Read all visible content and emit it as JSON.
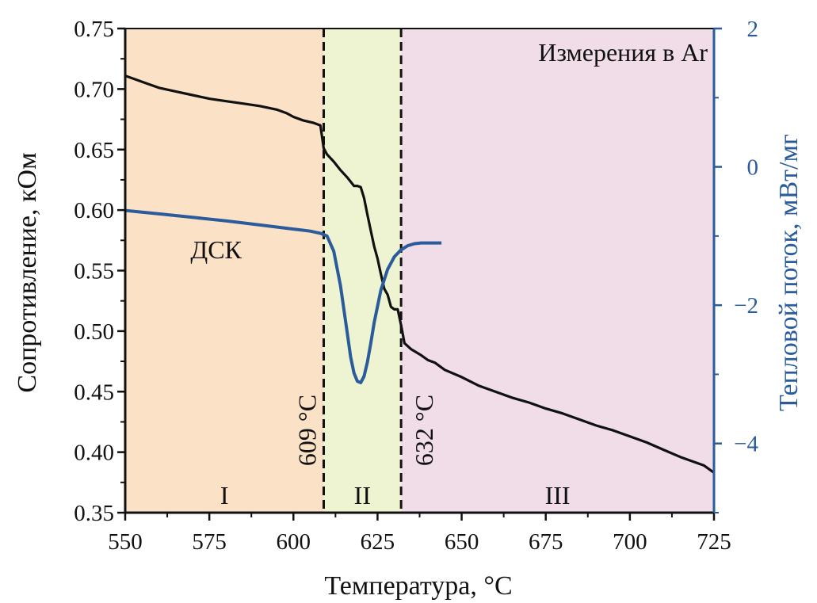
{
  "chart_data": {
    "type": "line",
    "annotation_title": "Измерения в Ar",
    "xlabel": "Температура, °C",
    "ylabel": "Сопротивление, кОм",
    "y2label": "Тепловой поток, мВт/мг",
    "xlim": [
      550,
      725
    ],
    "ylim": [
      0.35,
      0.75
    ],
    "y2lim": [
      -5,
      2
    ],
    "x_ticks": [
      "550",
      "575",
      "600",
      "625",
      "650",
      "675",
      "700",
      "725"
    ],
    "y_ticks": [
      "0.35",
      "0.40",
      "0.45",
      "0.50",
      "0.55",
      "0.60",
      "0.65",
      "0.70",
      "0.75"
    ],
    "y2_ticks": [
      "−4",
      "−2",
      "0",
      "2"
    ],
    "regions": [
      {
        "label": "I",
        "from": 550,
        "to": 609,
        "color": "#fbe2c6"
      },
      {
        "label": "II",
        "from": 609,
        "to": 632,
        "color": "#eef4d2"
      },
      {
        "label": "III",
        "from": 632,
        "to": 725,
        "color": "#f0dde8"
      }
    ],
    "vlines": [
      {
        "x": 609,
        "label": "609 °C"
      },
      {
        "x": 632,
        "label": "632 °C"
      }
    ],
    "series": [
      {
        "axis": "left",
        "color": "#111111",
        "x": [
          550,
          552,
          556,
          560,
          565,
          570,
          575,
          580,
          585,
          590,
          595,
          598,
          600,
          603,
          606,
          608,
          609,
          610,
          612,
          614,
          616,
          618,
          619,
          620,
          621,
          622,
          623,
          624,
          625,
          626,
          627,
          628,
          629,
          630,
          631,
          632,
          633,
          635,
          638,
          640,
          642,
          645,
          650,
          655,
          660,
          665,
          670,
          675,
          680,
          685,
          690,
          695,
          700,
          705,
          710,
          715,
          720,
          722,
          725
        ],
        "values": [
          0.711,
          0.709,
          0.705,
          0.701,
          0.698,
          0.695,
          0.692,
          0.69,
          0.688,
          0.686,
          0.683,
          0.68,
          0.677,
          0.674,
          0.672,
          0.67,
          0.651,
          0.646,
          0.64,
          0.633,
          0.627,
          0.62,
          0.62,
          0.619,
          0.61,
          0.596,
          0.583,
          0.57,
          0.56,
          0.547,
          0.535,
          0.53,
          0.52,
          0.518,
          0.518,
          0.505,
          0.49,
          0.485,
          0.48,
          0.476,
          0.474,
          0.468,
          0.462,
          0.455,
          0.45,
          0.445,
          0.441,
          0.436,
          0.432,
          0.427,
          0.422,
          0.418,
          0.413,
          0.408,
          0.402,
          0.396,
          0.391,
          0.389,
          0.383
        ]
      },
      {
        "axis": "right",
        "name": "ДСК",
        "label_at": [
          577,
          0.56
        ],
        "color": "#2a5b9a",
        "x": [
          550,
          560,
          570,
          580,
          590,
          600,
          605,
          608,
          610,
          612,
          614,
          616,
          617,
          618,
          619,
          620,
          621,
          622,
          623,
          624,
          626,
          628,
          630,
          632,
          634,
          636,
          638,
          640,
          642,
          644
        ],
        "values": [
          -0.63,
          -0.68,
          -0.73,
          -0.78,
          -0.84,
          -0.9,
          -0.93,
          -0.96,
          -1.0,
          -1.22,
          -1.72,
          -2.4,
          -2.75,
          -2.98,
          -3.1,
          -3.12,
          -3.03,
          -2.82,
          -2.55,
          -2.25,
          -1.78,
          -1.48,
          -1.3,
          -1.2,
          -1.14,
          -1.11,
          -1.1,
          -1.1,
          -1.1,
          -1.1
        ]
      }
    ]
  }
}
